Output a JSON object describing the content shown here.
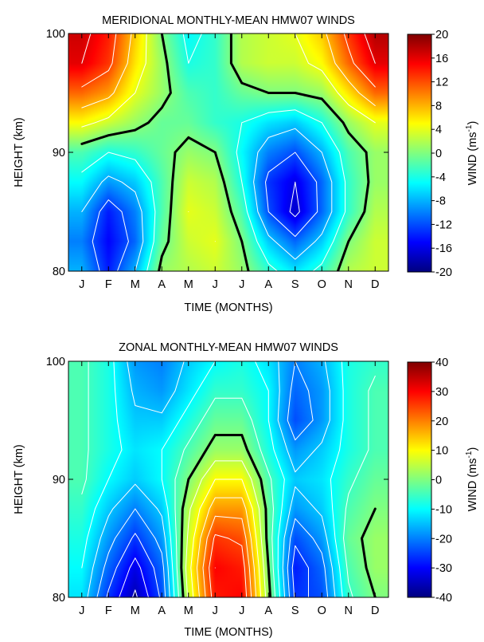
{
  "chart_data": [
    {
      "type": "heatmap",
      "title": "MERIDIONAL MONTHLY-MEAN HMW07 WINDS",
      "xlabel": "TIME (MONTHS)",
      "ylabel": "HEIGHT (km)",
      "x": [
        "J",
        "F",
        "M",
        "A",
        "M",
        "J",
        "J",
        "A",
        "S",
        "O",
        "N",
        "D"
      ],
      "y": [
        80,
        82.5,
        85,
        87.5,
        90,
        92.5,
        95,
        97.5,
        100
      ],
      "y_ticks": [
        "80",
        "90",
        "100"
      ],
      "ylim": [
        80,
        100
      ],
      "z": [
        [
          -8,
          -14,
          -8,
          1,
          2,
          3,
          1,
          -3,
          -6,
          -3,
          2,
          3
        ],
        [
          -10,
          -15,
          -11,
          -1,
          3,
          4,
          0,
          -7,
          -11,
          -7,
          0,
          3
        ],
        [
          -8,
          -14,
          -10,
          -2,
          4,
          3,
          -2,
          -12,
          -17,
          -11,
          -3,
          2
        ],
        [
          -5,
          -9,
          -7,
          -2,
          3,
          2,
          -4,
          -13,
          -16,
          -11,
          -3,
          1
        ],
        [
          -2,
          -4,
          -3,
          -1,
          1,
          0,
          -5,
          -10,
          -12,
          -8,
          -2,
          1
        ],
        [
          5,
          3,
          1,
          -1,
          -1,
          -3,
          -4,
          -6,
          -7,
          -4,
          1,
          4
        ],
        [
          11,
          9,
          4,
          1,
          -2,
          -3,
          -1,
          0,
          0,
          1,
          6,
          11
        ],
        [
          16,
          13,
          6,
          1,
          -4,
          -3,
          2,
          3,
          3,
          5,
          11,
          16
        ],
        [
          17,
          14,
          7,
          0,
          -5,
          -3,
          2,
          3,
          4,
          7,
          13,
          18
        ]
      ],
      "colorbar": {
        "label": "WIND (ms",
        "unit_exponent": "-1",
        "label_close": ")",
        "ticks": [
          "20",
          "16",
          "12",
          "8",
          "4",
          "0",
          "-4",
          "-8",
          "-12",
          "-16",
          "-20"
        ],
        "range": [
          -20,
          20
        ]
      }
    },
    {
      "type": "heatmap",
      "title": "ZONAL MONTHLY-MEAN HMW07 WINDS",
      "xlabel": "TIME (MONTHS)",
      "ylabel": "HEIGHT (km)",
      "x": [
        "J",
        "F",
        "M",
        "A",
        "M",
        "J",
        "J",
        "A",
        "S",
        "O",
        "N",
        "D"
      ],
      "y": [
        80,
        82.5,
        85,
        87.5,
        90,
        92.5,
        95,
        97.5,
        100
      ],
      "y_ticks": [
        "80",
        "90",
        "100"
      ],
      "ylim": [
        80,
        100
      ],
      "z": [
        [
          -12,
          -26,
          -36,
          -24,
          6,
          28,
          30,
          2,
          -26,
          -24,
          -6,
          0
        ],
        [
          -10,
          -22,
          -32,
          -22,
          8,
          30,
          28,
          0,
          -28,
          -22,
          -4,
          2
        ],
        [
          -8,
          -18,
          -26,
          -18,
          6,
          26,
          24,
          -2,
          -24,
          -18,
          -2,
          2
        ],
        [
          -6,
          -14,
          -20,
          -14,
          4,
          18,
          18,
          -2,
          -18,
          -14,
          -4,
          0
        ],
        [
          -4,
          -10,
          -14,
          -10,
          0,
          10,
          10,
          -4,
          -14,
          -12,
          -6,
          -2
        ],
        [
          -4,
          -8,
          -12,
          -10,
          -4,
          2,
          2,
          -8,
          -18,
          -14,
          -8,
          -4
        ],
        [
          -4,
          -8,
          -14,
          -14,
          -8,
          -2,
          -2,
          -10,
          -24,
          -18,
          -8,
          -4
        ],
        [
          -4,
          -8,
          -16,
          -18,
          -12,
          -6,
          -6,
          -10,
          -22,
          -18,
          -8,
          -4
        ],
        [
          -4,
          -8,
          -18,
          -20,
          -14,
          -10,
          -8,
          -12,
          -20,
          -16,
          -8,
          -6
        ]
      ],
      "colorbar": {
        "label": "WIND (ms",
        "unit_exponent": "-1",
        "label_close": ")",
        "ticks": [
          "40",
          "30",
          "20",
          "10",
          "0",
          "-10",
          "-20",
          "-30",
          "-40"
        ],
        "range": [
          -40,
          40
        ]
      }
    }
  ]
}
